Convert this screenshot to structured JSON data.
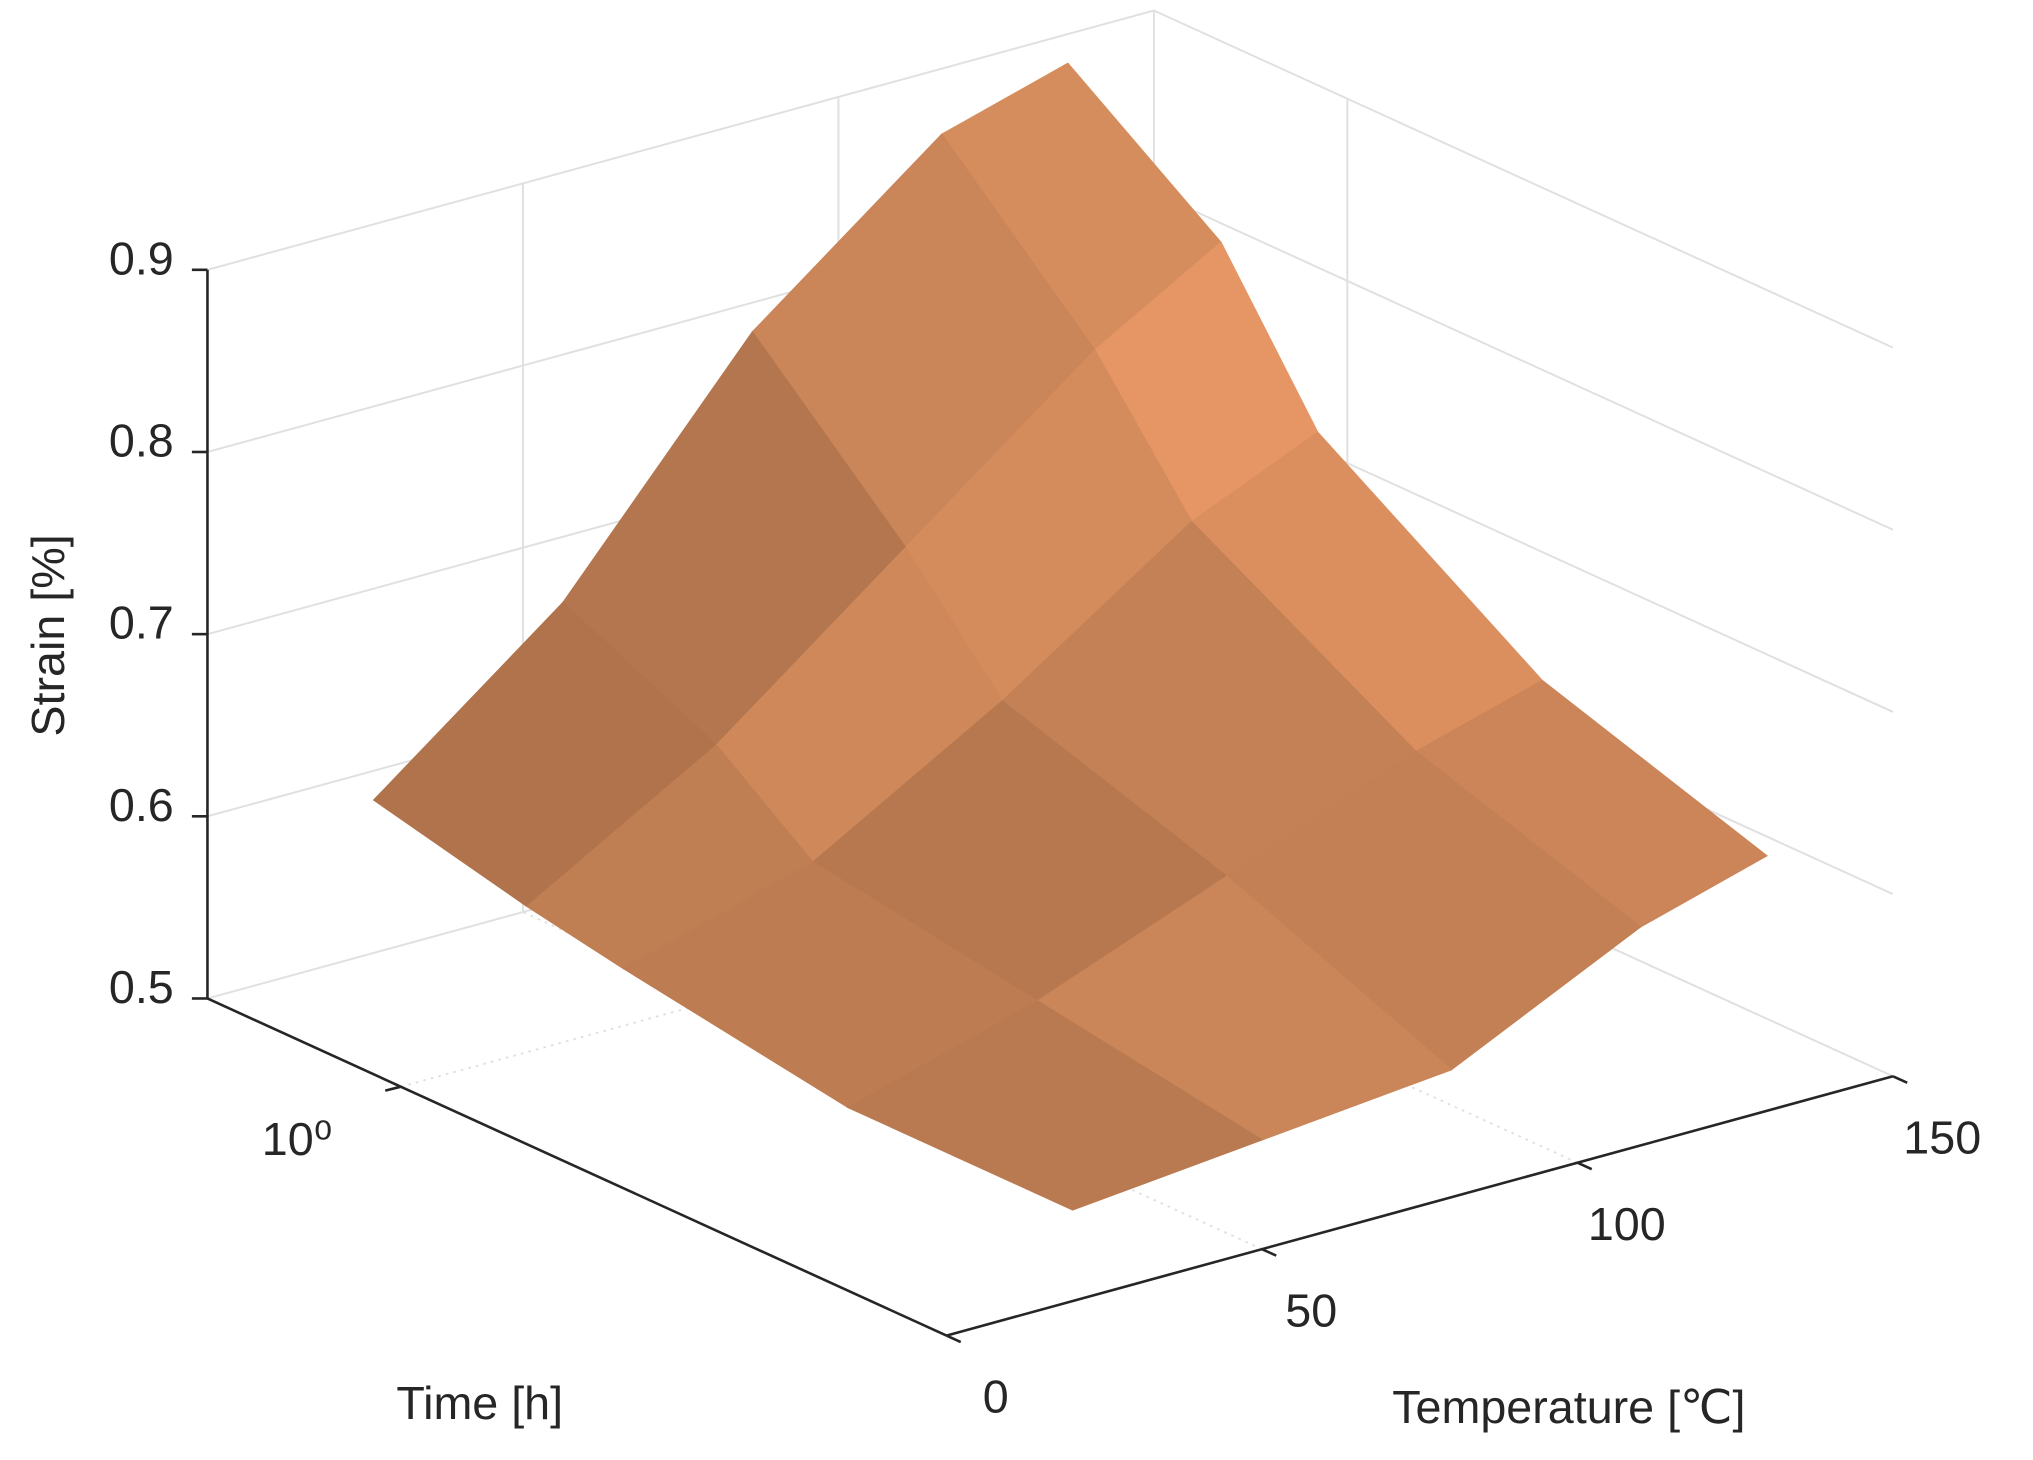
{
  "chart_data": {
    "type": "surface",
    "x_label": "Temperature [℃]",
    "y_label": "Time [h]",
    "z_label": "Strain [%]",
    "x": [
      20,
      50,
      80,
      110,
      130
    ],
    "y": [
      0.02,
      0.1,
      0.5,
      1,
      3
    ],
    "z": [
      [
        0.55,
        0.56,
        0.57,
        0.62,
        0.64
      ],
      [
        0.55,
        0.58,
        0.62,
        0.66,
        0.68
      ],
      [
        0.57,
        0.6,
        0.66,
        0.73,
        0.76
      ],
      [
        0.58,
        0.64,
        0.72,
        0.8,
        0.84
      ],
      [
        0.6,
        0.68,
        0.8,
        0.88,
        0.9
      ]
    ],
    "xlim": [
      0,
      150
    ],
    "xticks": [
      0,
      50,
      100,
      150
    ],
    "ylim": [
      0.02,
      4
    ],
    "yticks": [
      {
        "value": 1,
        "label": "10⁰"
      }
    ],
    "y_scale": "log",
    "zlim": [
      0.5,
      0.9
    ],
    "zticks": [
      0.5,
      0.6,
      0.7,
      0.8,
      0.9
    ],
    "grid": true,
    "color": "#f4a06a"
  }
}
